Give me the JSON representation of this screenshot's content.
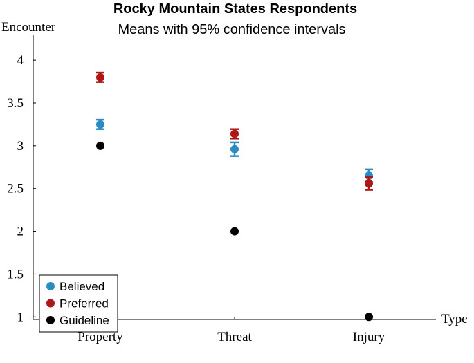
{
  "chart_data": {
    "type": "errorbar-dot",
    "title": "Rocky Mountain States Respondents",
    "subtitle": "Means with 95% confidence intervals",
    "y_label": "Encounter",
    "x_label": "Type",
    "categories": [
      "Property",
      "Threat",
      "Injury"
    ],
    "series": [
      {
        "name": "Believed",
        "color": "#2b8cc4",
        "values": [
          3.25,
          2.96,
          2.65
        ],
        "errors": [
          0.055,
          0.08,
          0.075
        ]
      },
      {
        "name": "Preferred",
        "color": "#b01818",
        "values": [
          3.8,
          3.14,
          2.56
        ],
        "errors": [
          0.055,
          0.055,
          0.075
        ]
      },
      {
        "name": "Guideline",
        "color": "#000000",
        "values": [
          3,
          2,
          1
        ]
      }
    ],
    "ylim": [
      0.97,
      4.3
    ],
    "yticks": [
      1,
      1.5,
      2,
      2.5,
      3,
      3.5,
      4
    ],
    "legend": "lower left"
  }
}
